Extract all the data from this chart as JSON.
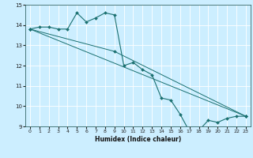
{
  "xlabel": "Humidex (Indice chaleur)",
  "bg_color": "#cceeff",
  "grid_color": "#ffffff",
  "line_color": "#1a7070",
  "xlim": [
    -0.5,
    23.5
  ],
  "ylim": [
    9,
    15
  ],
  "xticks": [
    0,
    1,
    2,
    3,
    4,
    5,
    6,
    7,
    8,
    9,
    10,
    11,
    12,
    13,
    14,
    15,
    16,
    17,
    18,
    19,
    20,
    21,
    22,
    23
  ],
  "yticks": [
    9,
    10,
    11,
    12,
    13,
    14,
    15
  ],
  "series": [
    {
      "x": [
        0,
        1,
        2,
        3,
        4,
        5,
        6,
        7,
        8,
        9,
        10,
        11,
        12,
        13,
        14,
        15,
        16,
        17,
        18,
        19,
        20,
        21,
        22,
        23
      ],
      "y": [
        13.8,
        13.9,
        13.9,
        13.8,
        13.8,
        14.6,
        14.15,
        14.35,
        14.6,
        14.5,
        12.0,
        12.15,
        11.8,
        11.55,
        10.4,
        10.3,
        9.6,
        8.75,
        8.8,
        9.3,
        9.2,
        9.4,
        9.5,
        9.5
      ]
    },
    {
      "x": [
        0,
        23
      ],
      "y": [
        13.8,
        9.5
      ]
    },
    {
      "x": [
        0,
        9,
        23
      ],
      "y": [
        13.8,
        12.7,
        9.5
      ]
    }
  ]
}
